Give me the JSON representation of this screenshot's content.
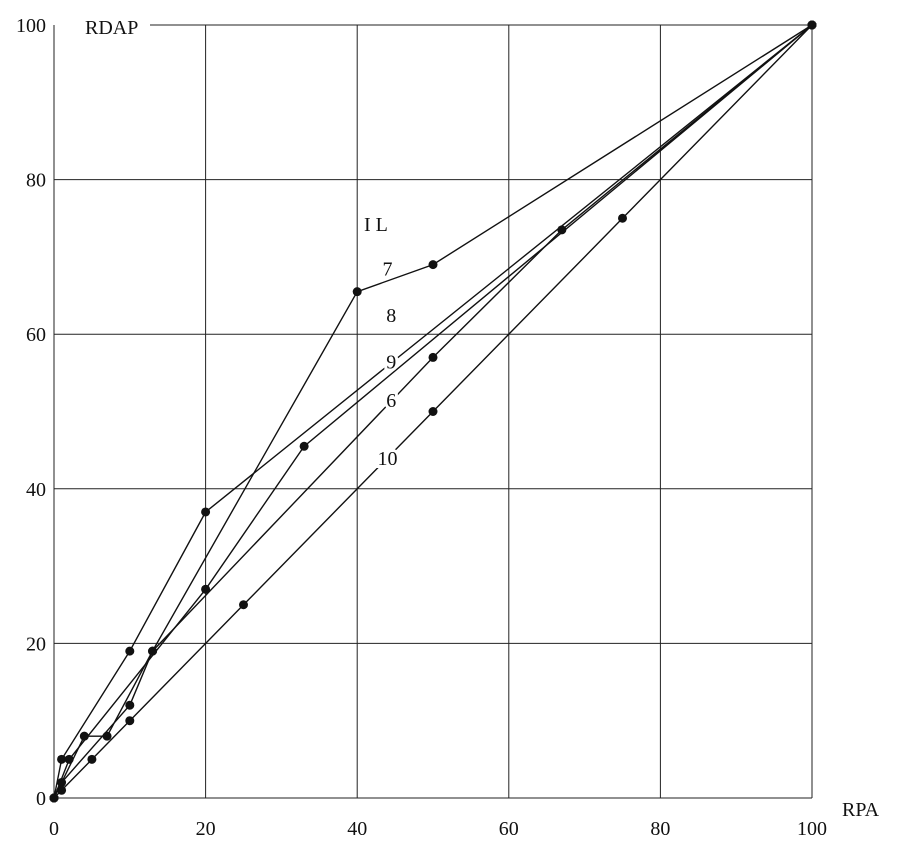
{
  "chart_data": {
    "type": "line",
    "xlabel": "RPA",
    "ylabel": "RDAP",
    "legend_title": "I L",
    "xlim": [
      0,
      100
    ],
    "ylim": [
      0,
      100
    ],
    "xticks": [
      0,
      20,
      40,
      60,
      80,
      100
    ],
    "yticks": [
      0,
      20,
      40,
      60,
      80,
      100
    ],
    "grid": true,
    "series": [
      {
        "name": "7",
        "points": [
          [
            0,
            0
          ],
          [
            1,
            5
          ],
          [
            10,
            19
          ],
          [
            20,
            37
          ],
          [
            100,
            100
          ]
        ]
      },
      {
        "name": "8",
        "points": [
          [
            0,
            0
          ],
          [
            1,
            2
          ],
          [
            10,
            12
          ],
          [
            13,
            19
          ],
          [
            40,
            65.5
          ],
          [
            50,
            69
          ],
          [
            100,
            100
          ]
        ]
      },
      {
        "name": "9",
        "points": [
          [
            0,
            0
          ],
          [
            2,
            5
          ],
          [
            20,
            27
          ],
          [
            33,
            45.5
          ],
          [
            100,
            100
          ]
        ]
      },
      {
        "name": "6",
        "points": [
          [
            0,
            0
          ],
          [
            4,
            8
          ],
          [
            7,
            8
          ],
          [
            13,
            19
          ],
          [
            50,
            57
          ],
          [
            67,
            73.5
          ],
          [
            100,
            100
          ]
        ]
      },
      {
        "name": "10",
        "points": [
          [
            0,
            0
          ],
          [
            1,
            1
          ],
          [
            5,
            5
          ],
          [
            10,
            10
          ],
          [
            25,
            25
          ],
          [
            50,
            50
          ],
          [
            75,
            75
          ],
          [
            100,
            100
          ]
        ]
      }
    ],
    "series_labels": [
      {
        "name": "7",
        "at": [
          44,
          68.5
        ]
      },
      {
        "name": "8",
        "at": [
          44.5,
          62.5
        ]
      },
      {
        "name": "9",
        "at": [
          44.5,
          56.5
        ]
      },
      {
        "name": "6",
        "at": [
          44.5,
          51.5
        ]
      },
      {
        "name": "10",
        "at": [
          44,
          44
        ]
      }
    ]
  }
}
